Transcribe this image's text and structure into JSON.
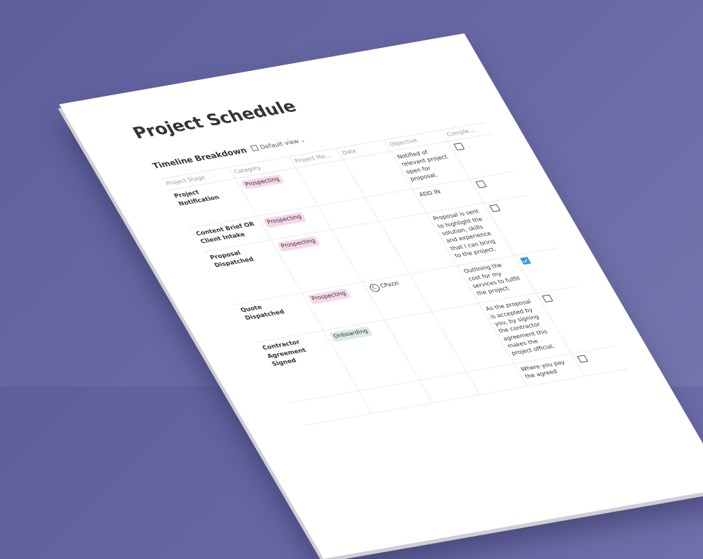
{
  "header": {
    "title": "Project Schedule",
    "view_title": "Timeline Breakdown",
    "view_name": "Default view"
  },
  "table": {
    "columns": [
      "Project Stage",
      "Category",
      "Project Me...",
      "Date",
      "Objective",
      "Comple..."
    ],
    "rows": [
      {
        "stage": "Project Notification",
        "category": "Prospecting",
        "category_color": "#f6d7ea",
        "objective": "Notified of relevant project open for proposal.",
        "completed": false
      },
      {
        "stage": "Content Brief OR Client Intake",
        "category": "Prospecting",
        "category_color": "#f6d7ea",
        "objective": "ADD IN",
        "completed": false
      },
      {
        "stage": "Proposal Dispatched",
        "category": "Prospecting",
        "category_color": "#f6d7ea",
        "objective": "Proposal is sent to highlight the solution, skills and experience that I can bring to the project.",
        "completed": false
      },
      {
        "stage": "Quote Dispatched",
        "category": "Prospecting",
        "category_color": "#f6d7ea",
        "member": "CPazzi",
        "objective": "Outlining the cost for my services to fulfill the project.",
        "completed": true
      },
      {
        "stage": "Contractor Agreement Signed",
        "category": "Onboarding",
        "category_color": "#d9ece3",
        "objective": "As the proposal is accepted by you, by signing the contractor agreement this makes the project official.",
        "completed": false
      },
      {
        "objective": "Where you pay the agreed",
        "completed": false
      }
    ]
  }
}
